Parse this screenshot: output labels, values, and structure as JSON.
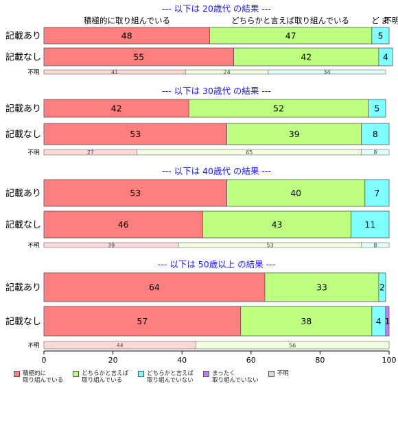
{
  "chart_data": {
    "type": "bar",
    "orientation": "horizontal",
    "stacked": true,
    "xlim": [
      0,
      100
    ],
    "x_ticks": [
      0,
      20,
      40,
      60,
      80,
      100
    ],
    "categories_header": [
      "積極的に取り組んでいる",
      "どちらかと言えば取り組んでいる",
      "ど",
      "ま",
      "不明"
    ],
    "legend": [
      {
        "label": "積極的に\n取り組んでいる",
        "color": "#ff7f7f"
      },
      {
        "label": "どちらかと言えば\n取り組んでいる",
        "color": "#bfff7f"
      },
      {
        "label": "どちらかと言えば\n取り組んでいない",
        "color": "#7fffff"
      },
      {
        "label": "まったく\n取り組んでいない",
        "color": "#bf7fff"
      },
      {
        "label": "不明",
        "color": "#d9d9d9"
      }
    ],
    "groups": [
      {
        "title": "--- 以下は 20歳代 の結果 ---",
        "rows": [
          {
            "label": "記載あり",
            "values": [
              48,
              47,
              5,
              0
            ]
          },
          {
            "label": "記載なし",
            "values": [
              55,
              42,
              4,
              0
            ]
          }
        ],
        "unknown": {
          "label": "不明",
          "values": [
            41,
            24,
            34
          ]
        }
      },
      {
        "title": "--- 以下は 30歳代 の結果 ---",
        "rows": [
          {
            "label": "記載あり",
            "values": [
              42,
              52,
              5,
              0
            ]
          },
          {
            "label": "記載なし",
            "values": [
              53,
              39,
              8,
              0
            ]
          }
        ],
        "unknown": {
          "label": "不明",
          "values": [
            27,
            65,
            8
          ]
        }
      },
      {
        "title": "--- 以下は 40歳代 の結果 ---",
        "rows": [
          {
            "label": "記載あり",
            "values": [
              53,
              40,
              7,
              0
            ]
          },
          {
            "label": "記載なし",
            "values": [
              46,
              43,
              11,
              0
            ]
          }
        ],
        "unknown": {
          "label": "不明",
          "values": [
            39,
            53,
            8
          ]
        }
      },
      {
        "title": "--- 以下は 50歳以上 の結果 ---",
        "rows": [
          {
            "label": "記載あり",
            "values": [
              64,
              33,
              2,
              0
            ]
          },
          {
            "label": "記載なし",
            "values": [
              57,
              38,
              4,
              1
            ]
          }
        ],
        "unknown": {
          "label": "不明",
          "values": [
            44,
            56,
            0
          ]
        }
      }
    ],
    "colors": {
      "series": [
        "#ff7f7f",
        "#bfff7f",
        "#7fffff",
        "#bf7fff"
      ],
      "unknown": [
        "#ffd9d9",
        "#efffdf",
        "#dfffff"
      ],
      "title": "#1a1aff"
    }
  }
}
